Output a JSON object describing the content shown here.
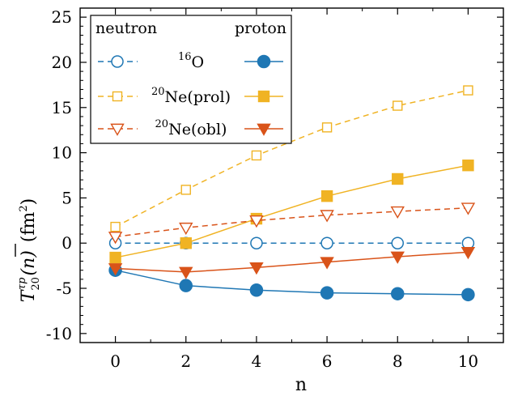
{
  "chart_data": {
    "type": "line",
    "x": [
      0,
      2,
      4,
      6,
      8,
      10
    ],
    "xlabel": "n",
    "ylabel": "T̄20τp(n) (fm2)",
    "ylabel_parts": {
      "base": "T",
      "sub": "20",
      "sup": "τp",
      "arg": "(n)",
      "unit": "(fm",
      "unit_sup": "2",
      "unit_close": ")"
    },
    "xlim": [
      -1.0,
      11.0
    ],
    "ylim": [
      -11,
      26
    ],
    "xticks": [
      "0",
      "2",
      "4",
      "6",
      "8",
      "10"
    ],
    "yticks": [
      "-10",
      "-5",
      "0",
      "5",
      "10",
      "15",
      "20",
      "25"
    ],
    "grid": false,
    "legend": {
      "placement": "top-left",
      "header_left": "neutron",
      "header_right": "proton",
      "rows": [
        {
          "label_sup": "16",
          "label_main": "O"
        },
        {
          "label_sup": "20",
          "label_main": "Ne(prol)"
        },
        {
          "label_sup": "20",
          "label_main": "Ne(obl)"
        }
      ]
    },
    "series": [
      {
        "nucleus": "16O",
        "kind": "neutron",
        "color": "#1f77b4",
        "marker": "circle-open",
        "dashed": true,
        "values": [
          0.0,
          0.0,
          0.0,
          0.0,
          0.0,
          0.0
        ]
      },
      {
        "nucleus": "16O",
        "kind": "proton",
        "color": "#1f77b4",
        "marker": "circle-filled",
        "dashed": false,
        "values": [
          -3.0,
          -4.7,
          -5.2,
          -5.5,
          -5.6,
          -5.7
        ]
      },
      {
        "nucleus": "20Ne(prol)",
        "kind": "neutron",
        "color": "#f0b323",
        "marker": "square-open",
        "dashed": true,
        "values": [
          1.8,
          5.9,
          9.7,
          12.8,
          15.2,
          16.9
        ]
      },
      {
        "nucleus": "20Ne(prol)",
        "kind": "proton",
        "color": "#f0b323",
        "marker": "square-filled",
        "dashed": false,
        "values": [
          -1.6,
          0.0,
          2.7,
          5.2,
          7.1,
          8.6
        ]
      },
      {
        "nucleus": "20Ne(obl)",
        "kind": "neutron",
        "color": "#d95319",
        "marker": "triangle-open",
        "dashed": true,
        "values": [
          0.7,
          1.7,
          2.5,
          3.1,
          3.5,
          3.9
        ]
      },
      {
        "nucleus": "20Ne(obl)",
        "kind": "proton",
        "color": "#d95319",
        "marker": "triangle-filled",
        "dashed": false,
        "values": [
          -2.8,
          -3.2,
          -2.7,
          -2.1,
          -1.5,
          -1.0
        ]
      }
    ]
  }
}
